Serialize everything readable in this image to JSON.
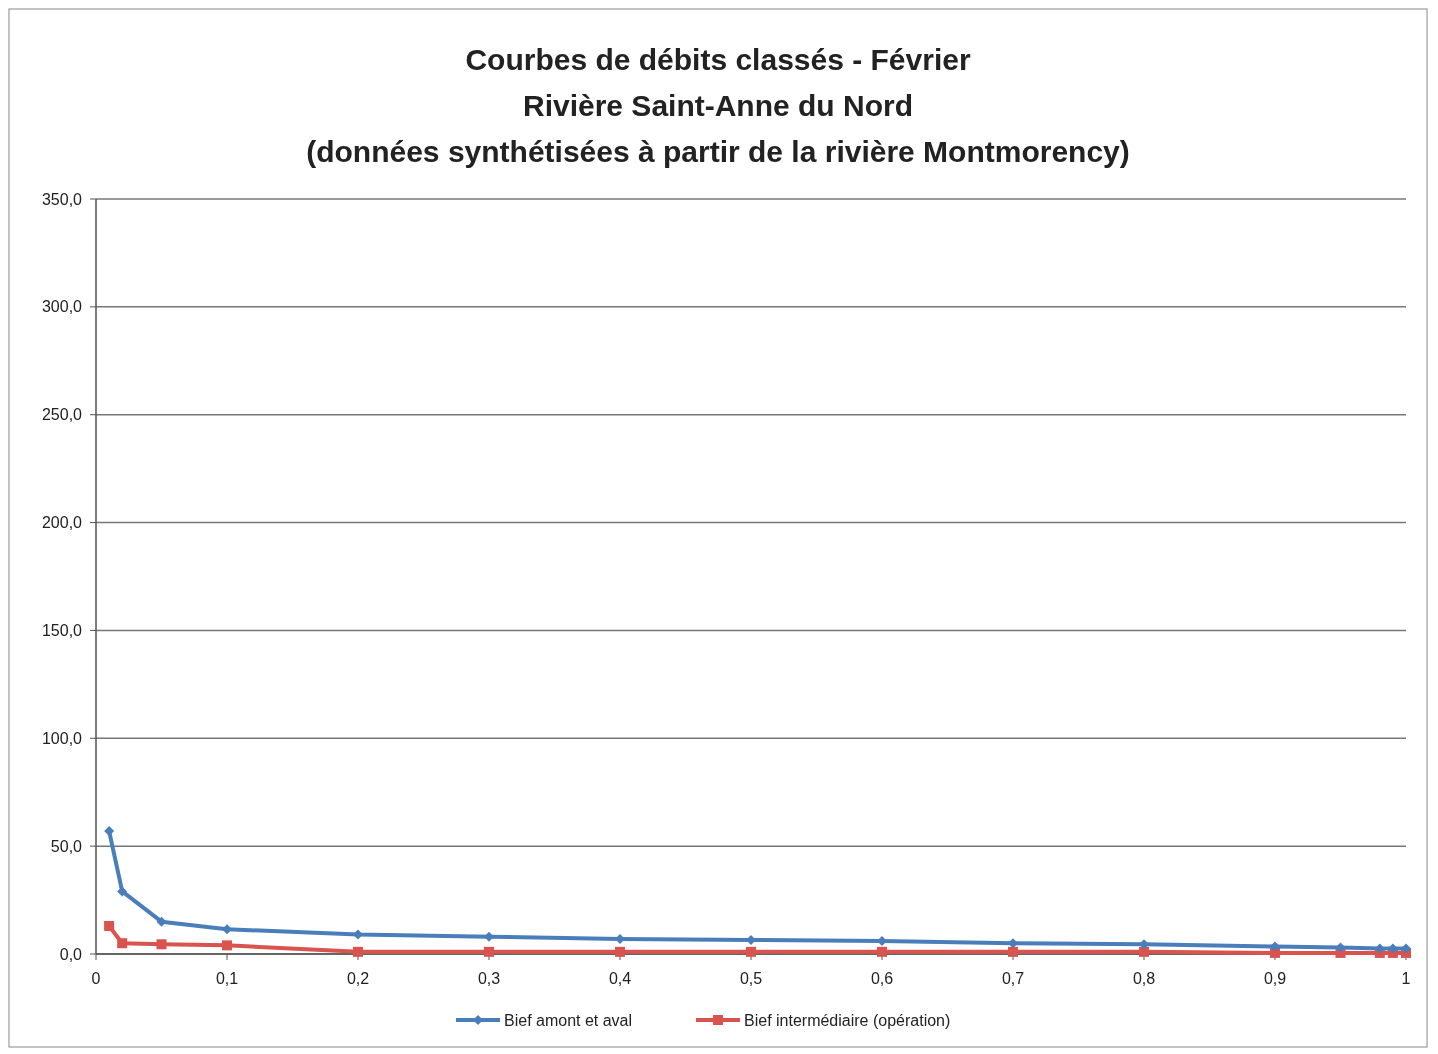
{
  "chart_data": {
    "type": "line",
    "title": "Courbes de débits classés - Février\nRivière Saint-Anne du Nord\n(données synthétisées à partir de la rivière Montmorency)",
    "x": [
      0.01,
      0.02,
      0.05,
      0.1,
      0.2,
      0.3,
      0.4,
      0.5,
      0.6,
      0.7,
      0.8,
      0.9,
      0.95,
      0.98,
      0.99,
      1
    ],
    "series": [
      {
        "name": "Bief amont et aval",
        "color": "#4a7ebb",
        "marker": "diamond",
        "values": [
          57,
          29,
          15,
          11.5,
          9,
          8,
          7,
          6.5,
          6,
          5,
          4.5,
          3.5,
          3,
          2.5,
          2.5,
          2.5
        ]
      },
      {
        "name": "Bief intermédiaire (opération)",
        "color": "#d9534f",
        "marker": "square",
        "values": [
          13,
          5,
          4.5,
          4,
          1,
          1,
          1,
          1,
          1,
          1,
          1,
          0.5,
          0.5,
          0.5,
          0.5,
          0.5
        ]
      }
    ],
    "xlim": [
      0,
      1
    ],
    "xticks": [
      0,
      {
        "value": 0.1,
        "label": "0,1"
      },
      {
        "value": 0.2,
        "label": "0,2"
      },
      {
        "value": 0.3,
        "label": "0,3"
      },
      {
        "value": 0.4,
        "label": "0,4"
      },
      {
        "value": 0.5,
        "label": "0,5"
      },
      {
        "value": 0.6,
        "label": "0,6"
      },
      {
        "value": 0.7,
        "label": "0,7"
      },
      {
        "value": 0.8,
        "label": "0,8"
      },
      {
        "value": 0.9,
        "label": "0,9"
      },
      1
    ],
    "ylim": [
      0,
      350
    ],
    "yticks": [
      {
        "value": 0,
        "label": "0,0"
      },
      {
        "value": 50,
        "label": "50,0"
      },
      {
        "value": 100,
        "label": "100,0"
      },
      {
        "value": 150,
        "label": "150,0"
      },
      {
        "value": 200,
        "label": "200,0"
      },
      {
        "value": 250,
        "label": "250,0"
      },
      {
        "value": 300,
        "label": "300,0"
      },
      {
        "value": 350,
        "label": "350,0"
      }
    ],
    "grid": "y",
    "legend": "bottom",
    "line_style": "solid"
  }
}
